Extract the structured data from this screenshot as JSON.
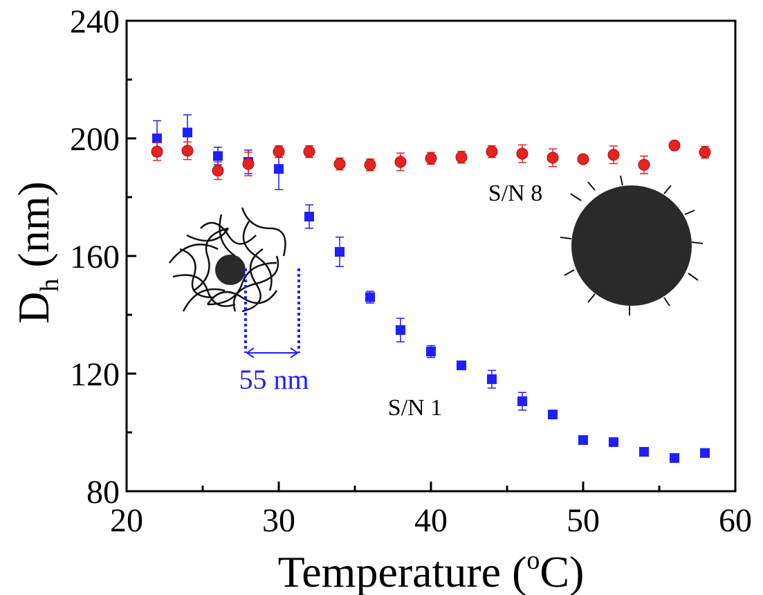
{
  "chart_data": {
    "type": "scatter",
    "xlabel": {
      "text": "Temperature (",
      "sup": "o",
      "after": "C)"
    },
    "ylabel": {
      "text": "D",
      "sub": "h",
      "after": " (nm)"
    },
    "annotation": "55 nm",
    "x": [
      22,
      24,
      26,
      28,
      30,
      32,
      34,
      36,
      38,
      40,
      42,
      44,
      46,
      48,
      50,
      52,
      54,
      56,
      58
    ],
    "series": [
      {
        "name": "S/N 1",
        "color": "#1f1fff",
        "marker": "square",
        "values": [
          200,
          202,
          194,
          192,
          189.6,
          173.4,
          161.4,
          146,
          134.8,
          127.5,
          122.8,
          118.1,
          110.6,
          106.1,
          97.4,
          96.7,
          93.4,
          91.3,
          93
        ],
        "errors": [
          6,
          6,
          3,
          4,
          7,
          4,
          5,
          2,
          4,
          2,
          1,
          3,
          3,
          1,
          1,
          1,
          1,
          1,
          1
        ]
      },
      {
        "name": "S/N 8",
        "color": "#e8231f",
        "marker": "circle",
        "values": [
          195.5,
          195.8,
          189,
          191.3,
          195.5,
          195.5,
          191.3,
          191,
          192,
          193.2,
          193.6,
          195.5,
          194.8,
          193.4,
          192.9,
          194.4,
          191,
          197.6,
          195.3
        ],
        "errors": [
          3,
          3,
          3,
          4,
          2,
          2,
          2,
          2,
          3,
          2,
          2,
          2,
          3,
          3,
          1,
          3,
          3,
          1,
          2
        ]
      }
    ],
    "xlim": [
      20,
      60
    ],
    "xticks": [
      20,
      30,
      40,
      50,
      60
    ],
    "xminorticks": [
      25,
      35,
      45,
      55
    ],
    "ylim": [
      80,
      240
    ],
    "yticks": [
      80,
      120,
      160,
      200,
      240
    ],
    "yminorticks": [
      100,
      140,
      180,
      220
    ]
  }
}
